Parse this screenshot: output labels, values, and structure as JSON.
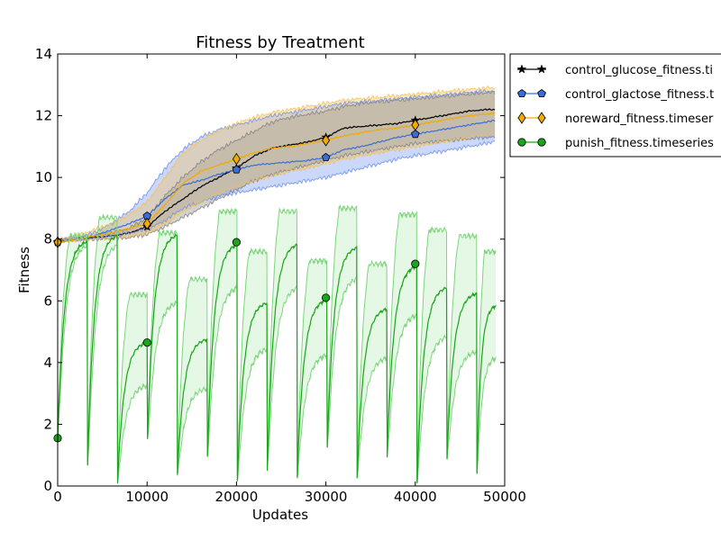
{
  "chart_data": {
    "type": "line",
    "title": "Fitness by Treatment",
    "xlabel": "Updates",
    "ylabel": "Fitness",
    "xlim": [
      0,
      50000
    ],
    "ylim": [
      0,
      14
    ],
    "xticks": [
      0,
      10000,
      20000,
      30000,
      40000,
      50000
    ],
    "yticks": [
      0,
      2,
      4,
      6,
      8,
      10,
      12,
      14
    ],
    "grid": false,
    "legend_position": "outside-top-right",
    "series": [
      {
        "name": "control_glucose_fitness.timeseries",
        "legend_text": "control_glucose_fitness.ti",
        "marker": "star",
        "color": "#000000",
        "band_color": "#7f7f7f",
        "x": [
          0,
          2000,
          4000,
          6000,
          8000,
          10000,
          12000,
          14000,
          16000,
          18000,
          20000,
          22000,
          24000,
          26000,
          28000,
          30000,
          32000,
          34000,
          36000,
          38000,
          40000,
          42000,
          44000,
          46000,
          48000,
          49000
        ],
        "mean": [
          7.9,
          8.0,
          8.05,
          8.1,
          8.2,
          8.4,
          8.9,
          9.3,
          9.7,
          10.0,
          10.3,
          10.7,
          10.95,
          11.05,
          11.15,
          11.3,
          11.6,
          11.65,
          11.7,
          11.75,
          11.85,
          11.95,
          12.05,
          12.15,
          12.2,
          12.2
        ],
        "lower": [
          7.9,
          7.98,
          8.0,
          8.02,
          8.05,
          8.15,
          8.4,
          8.7,
          9.0,
          9.3,
          9.6,
          9.9,
          10.1,
          10.25,
          10.4,
          10.55,
          10.7,
          10.8,
          10.9,
          11.0,
          11.1,
          11.15,
          11.2,
          11.25,
          11.3,
          11.3
        ],
        "upper": [
          7.95,
          8.05,
          8.1,
          8.2,
          8.35,
          8.7,
          9.4,
          10.0,
          10.5,
          10.9,
          11.2,
          11.5,
          11.8,
          11.95,
          12.05,
          12.15,
          12.3,
          12.4,
          12.45,
          12.5,
          12.55,
          12.6,
          12.65,
          12.7,
          12.75,
          12.75
        ],
        "markers": [
          [
            0,
            7.9
          ],
          [
            10000,
            8.4
          ],
          [
            20000,
            10.3
          ],
          [
            30000,
            11.3
          ],
          [
            40000,
            11.85
          ]
        ]
      },
      {
        "name": "control_glactose_fitness.timeseries",
        "legend_text": "control_glactose_fitness.t",
        "marker": "pentagon",
        "color": "#3a6ed6",
        "band_color": "#6b8ef0",
        "x": [
          0,
          2000,
          4000,
          6000,
          8000,
          10000,
          12000,
          14000,
          16000,
          18000,
          20000,
          22000,
          24000,
          26000,
          28000,
          30000,
          32000,
          34000,
          36000,
          38000,
          40000,
          42000,
          44000,
          46000,
          48000,
          49000
        ],
        "mean": [
          7.9,
          8.0,
          8.1,
          8.3,
          8.5,
          8.75,
          9.3,
          9.75,
          9.9,
          10.1,
          10.25,
          10.4,
          10.45,
          10.5,
          10.55,
          10.65,
          10.9,
          11.0,
          11.15,
          11.3,
          11.4,
          11.5,
          11.6,
          11.7,
          11.8,
          11.85
        ],
        "lower": [
          7.9,
          7.98,
          8.02,
          8.1,
          8.2,
          8.3,
          8.6,
          9.0,
          9.2,
          9.4,
          9.5,
          9.6,
          9.7,
          9.8,
          9.9,
          10.0,
          10.15,
          10.3,
          10.45,
          10.6,
          10.7,
          10.8,
          10.9,
          11.0,
          11.1,
          11.2
        ],
        "upper": [
          8.0,
          8.05,
          8.2,
          8.5,
          8.9,
          9.5,
          10.3,
          10.9,
          11.3,
          11.55,
          11.7,
          11.85,
          12.0,
          12.1,
          12.2,
          12.3,
          12.4,
          12.45,
          12.5,
          12.55,
          12.6,
          12.65,
          12.7,
          12.75,
          12.8,
          12.8
        ],
        "markers": [
          [
            0,
            7.9
          ],
          [
            10000,
            8.75
          ],
          [
            20000,
            10.25
          ],
          [
            30000,
            10.65
          ],
          [
            40000,
            11.4
          ]
        ]
      },
      {
        "name": "noreward_fitness.timeseries",
        "legend_text": "noreward_fitness.timeser",
        "marker": "diamond",
        "color": "#f2a900",
        "band_color": "#f5c050",
        "x": [
          0,
          2000,
          4000,
          6000,
          8000,
          10000,
          12000,
          14000,
          16000,
          18000,
          20000,
          22000,
          24000,
          26000,
          28000,
          30000,
          32000,
          34000,
          36000,
          38000,
          40000,
          42000,
          44000,
          46000,
          48000,
          49000
        ],
        "mean": [
          7.9,
          8.0,
          8.1,
          8.2,
          8.35,
          8.5,
          9.1,
          9.8,
          10.2,
          10.4,
          10.6,
          10.8,
          10.95,
          11.0,
          11.1,
          11.2,
          11.35,
          11.45,
          11.55,
          11.6,
          11.7,
          11.8,
          11.9,
          12.0,
          12.05,
          12.1
        ],
        "lower": [
          7.9,
          7.95,
          8.0,
          8.05,
          8.1,
          8.2,
          8.5,
          8.9,
          9.2,
          9.5,
          9.7,
          9.9,
          10.05,
          10.2,
          10.3,
          10.45,
          10.6,
          10.7,
          10.8,
          10.9,
          11.0,
          11.1,
          11.2,
          11.3,
          11.4,
          11.45
        ],
        "upper": [
          8.0,
          8.1,
          8.3,
          8.5,
          8.8,
          9.2,
          10.0,
          10.8,
          11.2,
          11.5,
          11.75,
          11.95,
          12.1,
          12.2,
          12.3,
          12.4,
          12.5,
          12.55,
          12.6,
          12.65,
          12.7,
          12.75,
          12.8,
          12.85,
          12.9,
          12.9
        ],
        "markers": [
          [
            0,
            7.9
          ],
          [
            10000,
            8.5
          ],
          [
            20000,
            10.6
          ],
          [
            30000,
            11.2
          ],
          [
            40000,
            11.7
          ]
        ]
      },
      {
        "name": "punish_fitness.timeseries",
        "legend_text": "punish_fitness.timeseries",
        "marker": "circle",
        "color": "#1aa51a",
        "band_color": "#7ed67e",
        "reset_period": 3350,
        "cycles": [
          {
            "start": 0,
            "end": 3350,
            "min": 1.5,
            "mean_peak": 8.0,
            "lower_peak": 7.9,
            "upper_peak": 8.1
          },
          {
            "start": 3350,
            "end": 6700,
            "min": 0.7,
            "mean_peak": 8.2,
            "lower_peak": 7.9,
            "upper_peak": 8.7
          },
          {
            "start": 6700,
            "end": 10050,
            "min": 0.1,
            "mean_peak": 4.7,
            "lower_peak": 3.3,
            "upper_peak": 6.2
          },
          {
            "start": 10050,
            "end": 13400,
            "min": 1.5,
            "mean_peak": 8.2,
            "lower_peak": 6.0,
            "upper_peak": 8.2
          },
          {
            "start": 13400,
            "end": 16750,
            "min": 0.4,
            "mean_peak": 4.8,
            "lower_peak": 3.2,
            "upper_peak": 6.7
          },
          {
            "start": 16750,
            "end": 20100,
            "min": 0.9,
            "mean_peak": 7.9,
            "lower_peak": 6.5,
            "upper_peak": 8.9
          },
          {
            "start": 20100,
            "end": 23450,
            "min": 0.2,
            "mean_peak": 6.0,
            "lower_peak": 4.5,
            "upper_peak": 7.6
          },
          {
            "start": 23450,
            "end": 26800,
            "min": 0.5,
            "mean_peak": 7.9,
            "lower_peak": 6.5,
            "upper_peak": 8.9
          },
          {
            "start": 26800,
            "end": 30150,
            "min": 0.3,
            "mean_peak": 6.1,
            "lower_peak": 4.3,
            "upper_peak": 7.3
          },
          {
            "start": 30150,
            "end": 33500,
            "min": 1.2,
            "mean_peak": 7.8,
            "lower_peak": 6.8,
            "upper_peak": 9.0
          },
          {
            "start": 33500,
            "end": 36850,
            "min": 0.3,
            "mean_peak": 5.8,
            "lower_peak": 4.2,
            "upper_peak": 7.2
          },
          {
            "start": 36850,
            "end": 40200,
            "min": 0.9,
            "mean_peak": 7.2,
            "lower_peak": 5.6,
            "upper_peak": 8.8
          },
          {
            "start": 40200,
            "end": 43550,
            "min": 0.1,
            "mean_peak": 6.5,
            "lower_peak": 4.9,
            "upper_peak": 8.3
          },
          {
            "start": 43550,
            "end": 46900,
            "min": 0.9,
            "mean_peak": 6.3,
            "lower_peak": 4.4,
            "upper_peak": 8.1
          },
          {
            "start": 46900,
            "end": 49000,
            "min": 0.4,
            "mean_peak": 5.9,
            "lower_peak": 4.2,
            "upper_peak": 7.6
          }
        ],
        "markers": [
          [
            0,
            1.55
          ],
          [
            10000,
            4.65
          ],
          [
            20000,
            7.9
          ],
          [
            30000,
            6.1
          ],
          [
            40000,
            7.2
          ]
        ]
      }
    ]
  }
}
